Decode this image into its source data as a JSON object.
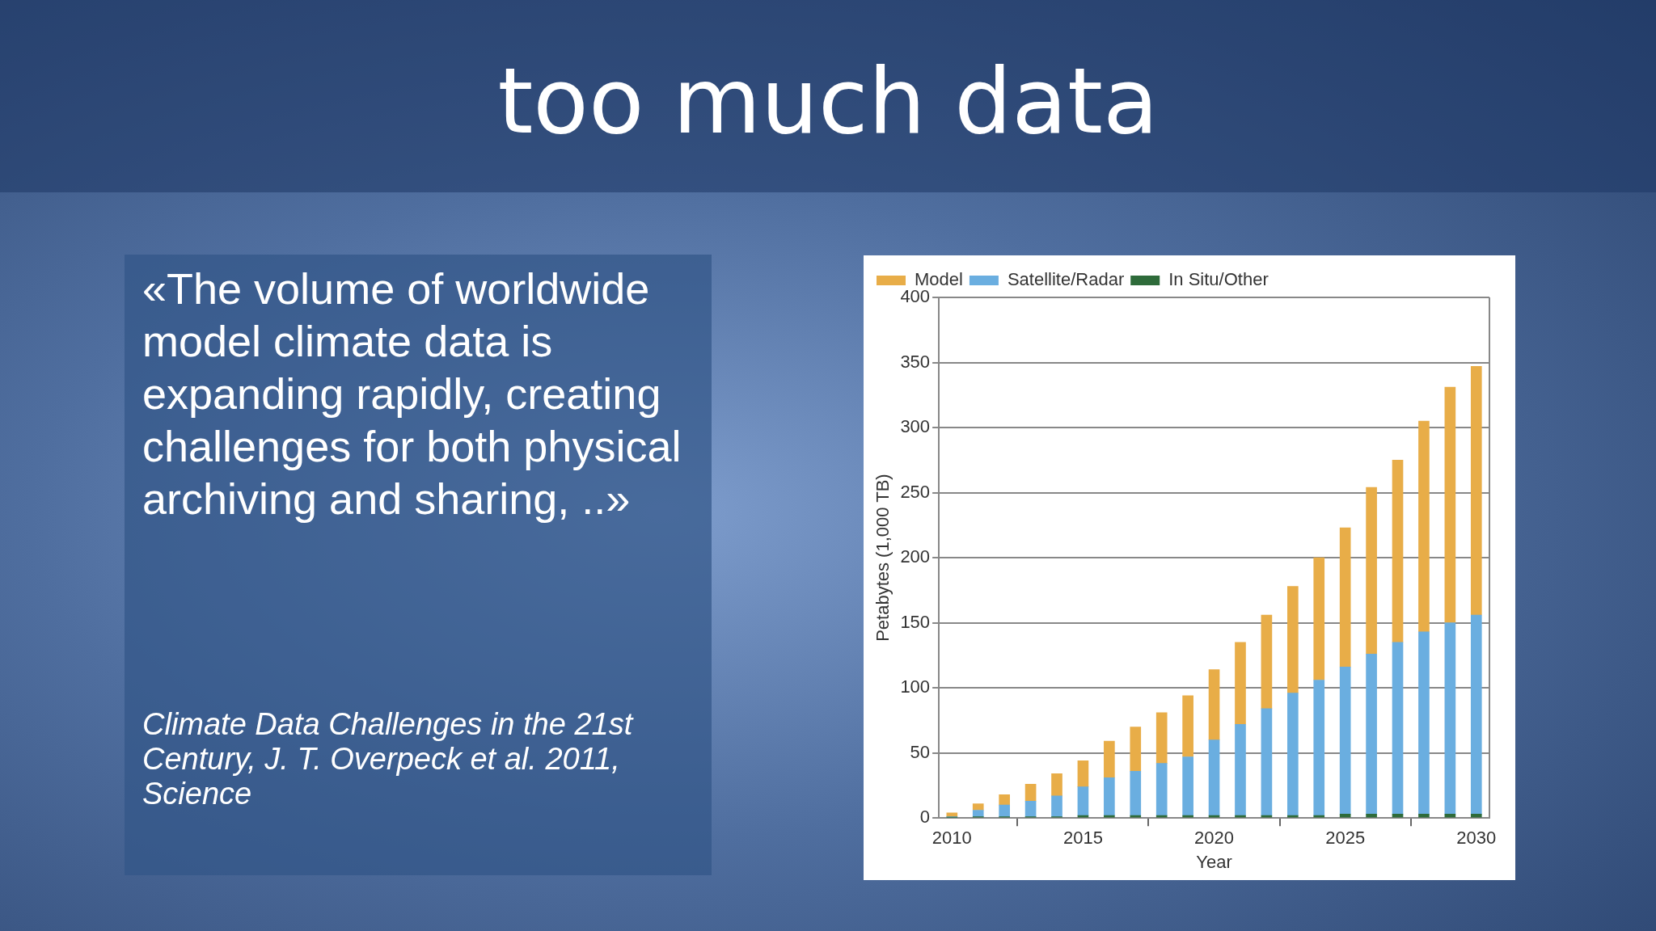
{
  "chart_data": {
    "type": "bar",
    "title": "too much data",
    "annotations": [
      "«The volume of worldwide model climate data is expanding rapidly, creating challenges for both physical archiving and sharing, ..»",
      "Climate Data Challenges in the 21st Century, J. T. Overpeck et al. 2011, Science"
    ],
    "xlabel": "Year",
    "ylabel": "Petabytes (1,000 TB)",
    "x": [
      2010,
      2011,
      2012,
      2013,
      2014,
      2015,
      2016,
      2017,
      2018,
      2019,
      2020,
      2021,
      2022,
      2023,
      2024,
      2025,
      2026,
      2027,
      2028,
      2029,
      2030
    ],
    "stacked": true,
    "series": [
      {
        "name": "In Situ/Other",
        "color": "#2e6b3a",
        "values": [
          0.5,
          1,
          1,
          1,
          1,
          2,
          2,
          2,
          2,
          2,
          2,
          2,
          2,
          2,
          2,
          3,
          3,
          3,
          3,
          3,
          3
        ]
      },
      {
        "name": "Satellite/Radar",
        "color": "#6aaee0",
        "values": [
          0.5,
          5,
          9,
          12,
          16,
          22,
          29,
          34,
          40,
          45,
          58,
          70,
          82,
          94,
          104,
          113,
          123,
          132,
          140,
          147,
          153
        ]
      },
      {
        "name": "Model",
        "color": "#e8ad48",
        "values": [
          3,
          5,
          8,
          13,
          17,
          20,
          28,
          34,
          39,
          47,
          54,
          63,
          72,
          82,
          94,
          107,
          128,
          140,
          162,
          181,
          191
        ]
      }
    ],
    "xlim": [
      2009.5,
      2030.5
    ],
    "xticks": [
      2010,
      2015,
      2020,
      2025,
      2030
    ],
    "ylim": [
      0,
      400
    ],
    "yticks": [
      0,
      50,
      100,
      150,
      200,
      250,
      300,
      350,
      400
    ],
    "grid": "y",
    "legend": "top left"
  }
}
